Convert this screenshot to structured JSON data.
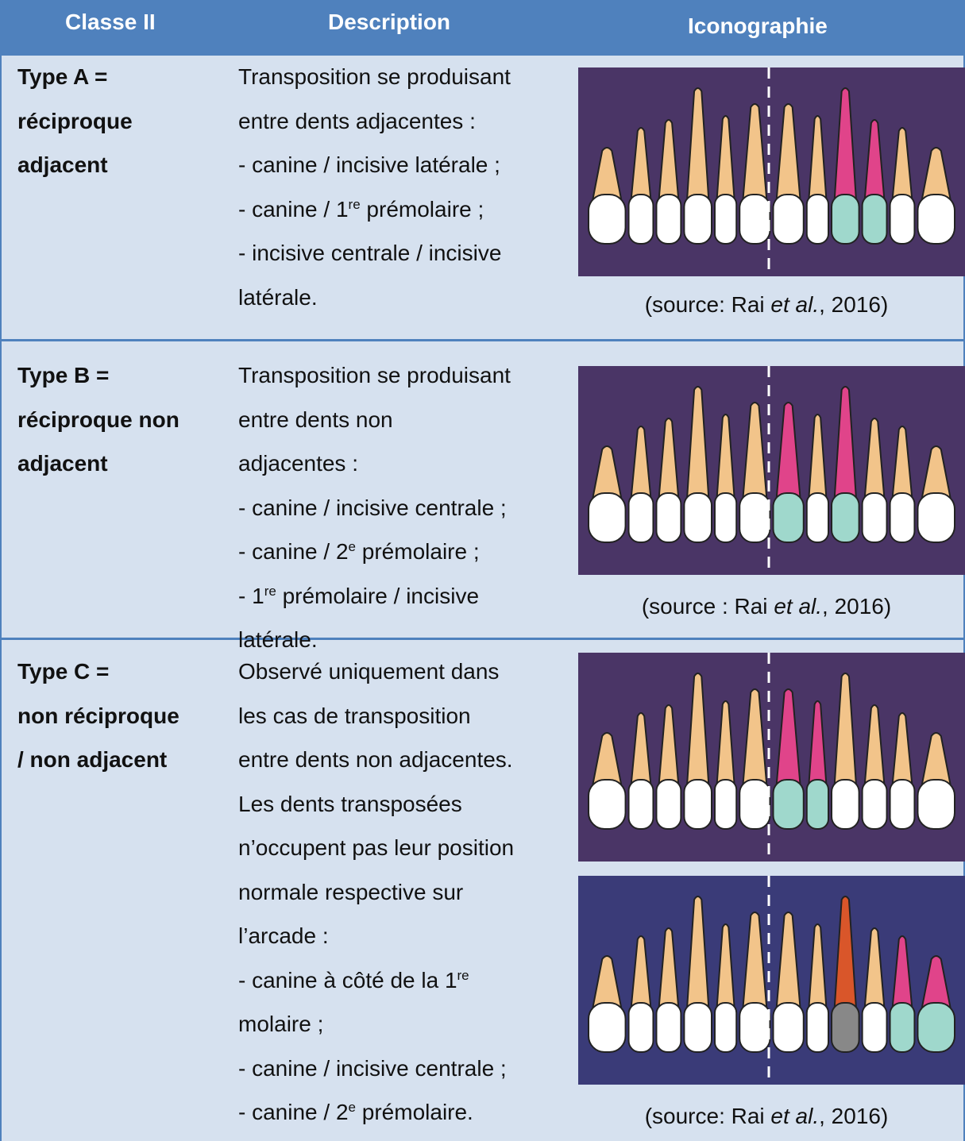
{
  "table": {
    "headers": [
      "Classe II",
      "Description",
      "Iconographie"
    ],
    "rows": [
      {
        "type": [
          "Type A =",
          "réciproque",
          "adjacent"
        ],
        "description": [
          {
            "text": "Transposition se produisant"
          },
          {
            "text": "entre dents adjacentes :"
          },
          {
            "text": "- canine / incisive latérale ;"
          },
          {
            "text": "- canine / 1",
            "sup": "re",
            "after": " prémolaire ;"
          },
          {
            "text": "- incisive centrale / incisive"
          },
          {
            "text": "latérale."
          }
        ],
        "source": {
          "before": "(source: Rai ",
          "italic": "et al.",
          "after": ", 2016)"
        }
      },
      {
        "type": [
          "Type B =",
          "réciproque non",
          "adjacent"
        ],
        "description": [
          {
            "text": "Transposition se produisant"
          },
          {
            "text": "entre dents non"
          },
          {
            "text": "adjacentes :"
          },
          {
            "text": "- canine / incisive centrale ;"
          },
          {
            "text": "- canine / 2",
            "sup": "e",
            "after": " prémolaire ;"
          },
          {
            "text": "- 1",
            "sup": "re",
            "after": " prémolaire / incisive"
          },
          {
            "text": "latérale."
          }
        ],
        "source": {
          "before": "(source : Rai ",
          "italic": "et al.",
          "after": ", 2016)"
        }
      },
      {
        "type": [
          "Type C =",
          "non réciproque",
          "/ non adjacent"
        ],
        "description": [
          {
            "text": "Observé uniquement dans"
          },
          {
            "text": "les cas de transposition"
          },
          {
            "text": "entre dents non adjacentes."
          },
          {
            "text": "Les dents transposées"
          },
          {
            "text": "n’occupent pas leur position"
          },
          {
            "text": "normale respective sur"
          },
          {
            "text": "l’arcade :"
          },
          {
            "text": "- canine à côté de la 1",
            "sup": "re"
          },
          {
            "text": "molaire ;"
          },
          {
            "text": "- canine / incisive centrale ;"
          },
          {
            "text": "- canine / 2",
            "sup": "e",
            "after": " prémolaire."
          }
        ],
        "source": {
          "before": "(source: Rai ",
          "italic": "et al.",
          "after": ", 2016)"
        }
      }
    ]
  }
}
